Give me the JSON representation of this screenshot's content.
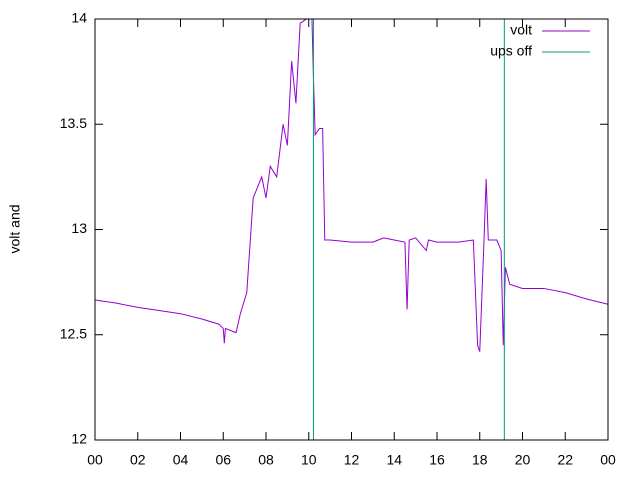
{
  "chart_data": {
    "type": "line",
    "ylabel": "volt and",
    "xlim": [
      0,
      24
    ],
    "xticks": [
      {
        "value": 0,
        "label": "00"
      },
      {
        "value": 2,
        "label": "02"
      },
      {
        "value": 4,
        "label": "04"
      },
      {
        "value": 6,
        "label": "06"
      },
      {
        "value": 8,
        "label": "08"
      },
      10,
      12,
      14,
      16,
      18,
      20,
      22,
      {
        "value": 24,
        "label": "00"
      }
    ],
    "ylim": [
      12,
      14
    ],
    "yticks": [
      12,
      12.5,
      13,
      13.5,
      14
    ],
    "legend": "top-right",
    "series": [
      {
        "name": "volt",
        "color": "#9400d3",
        "x": [
          0,
          1,
          2,
          3,
          4,
          5,
          5.8,
          6,
          6.05,
          6.1,
          6.6,
          6.8,
          7.1,
          7.3,
          7.4,
          7.6,
          7.8,
          8.0,
          8.2,
          8.5,
          8.8,
          9.0,
          9.2,
          9.4,
          9.6,
          9.9,
          10.15,
          10.22,
          10.3,
          10.5,
          10.65,
          10.75,
          11,
          12,
          13,
          13.5,
          14,
          14.5,
          14.6,
          14.7,
          15,
          15.5,
          15.6,
          16,
          17,
          17.7,
          17.9,
          18.0,
          18.2,
          18.3,
          18.4,
          18.8,
          19.0,
          19.1,
          19.2,
          19.4,
          20,
          21,
          22,
          23,
          24
        ],
        "values": [
          12.665,
          12.65,
          12.63,
          12.615,
          12.6,
          12.575,
          12.55,
          12.53,
          12.46,
          12.53,
          12.51,
          12.6,
          12.7,
          13.0,
          13.15,
          13.2,
          13.25,
          13.15,
          13.3,
          13.25,
          13.5,
          13.4,
          13.8,
          13.6,
          13.98,
          14.0,
          14.0,
          13.72,
          13.45,
          13.48,
          13.48,
          12.95,
          12.95,
          12.94,
          12.94,
          12.96,
          12.95,
          12.94,
          12.62,
          12.95,
          12.96,
          12.9,
          12.95,
          12.94,
          12.94,
          12.95,
          12.45,
          12.42,
          12.95,
          13.24,
          12.95,
          12.95,
          12.9,
          12.45,
          12.82,
          12.74,
          12.72,
          12.72,
          12.7,
          12.67,
          12.645
        ]
      },
      {
        "name": "ups off",
        "color": "#009e73",
        "x": [
          10.22,
          10.22,
          14.7,
          19.15,
          19.15
        ],
        "values": [
          12,
          14,
          null,
          14,
          12
        ]
      }
    ]
  }
}
